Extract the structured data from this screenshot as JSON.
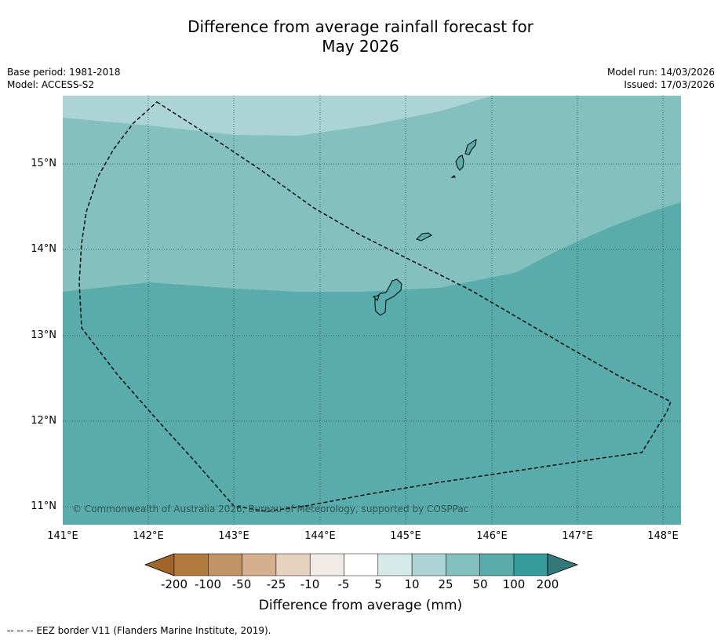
{
  "title_line1": "Difference from average rainfall forecast for",
  "title_line2": "May 2026",
  "base_period": "Base period: 1981-2018",
  "model": "Model: ACCESS-S2",
  "model_run": "Model run: 14/03/2026",
  "issued": "Issued: 17/03/2026",
  "copyright": "© Commonwealth of Australia 2026, Bureau of Meteorology, supported by COSPPac",
  "lat_labels": [
    "15°N",
    "14°N",
    "13°N",
    "12°N",
    "11°N"
  ],
  "lon_labels": [
    "141°E",
    "142°E",
    "143°E",
    "144°E",
    "145°E",
    "146°E",
    "147°E",
    "148°E"
  ],
  "colorbar": {
    "title": "Difference from average (mm)",
    "tick_labels": [
      "-200",
      "-100",
      "-50",
      "-25",
      "-10",
      "-5",
      "5",
      "10",
      "25",
      "50",
      "100",
      "200"
    ],
    "colors": [
      "#a0652b",
      "#b27a3f",
      "#c29366",
      "#d4b08f",
      "#e7d1bf",
      "#f0ebe6",
      "#ffffff",
      "#d5ebe9",
      "#acd4d4",
      "#84c0bf",
      "#5aabab",
      "#369b9b",
      "#347878"
    ]
  },
  "footer": "--  --  -- EEZ border V11 (Flanders Marine Institute, 2019)."
}
